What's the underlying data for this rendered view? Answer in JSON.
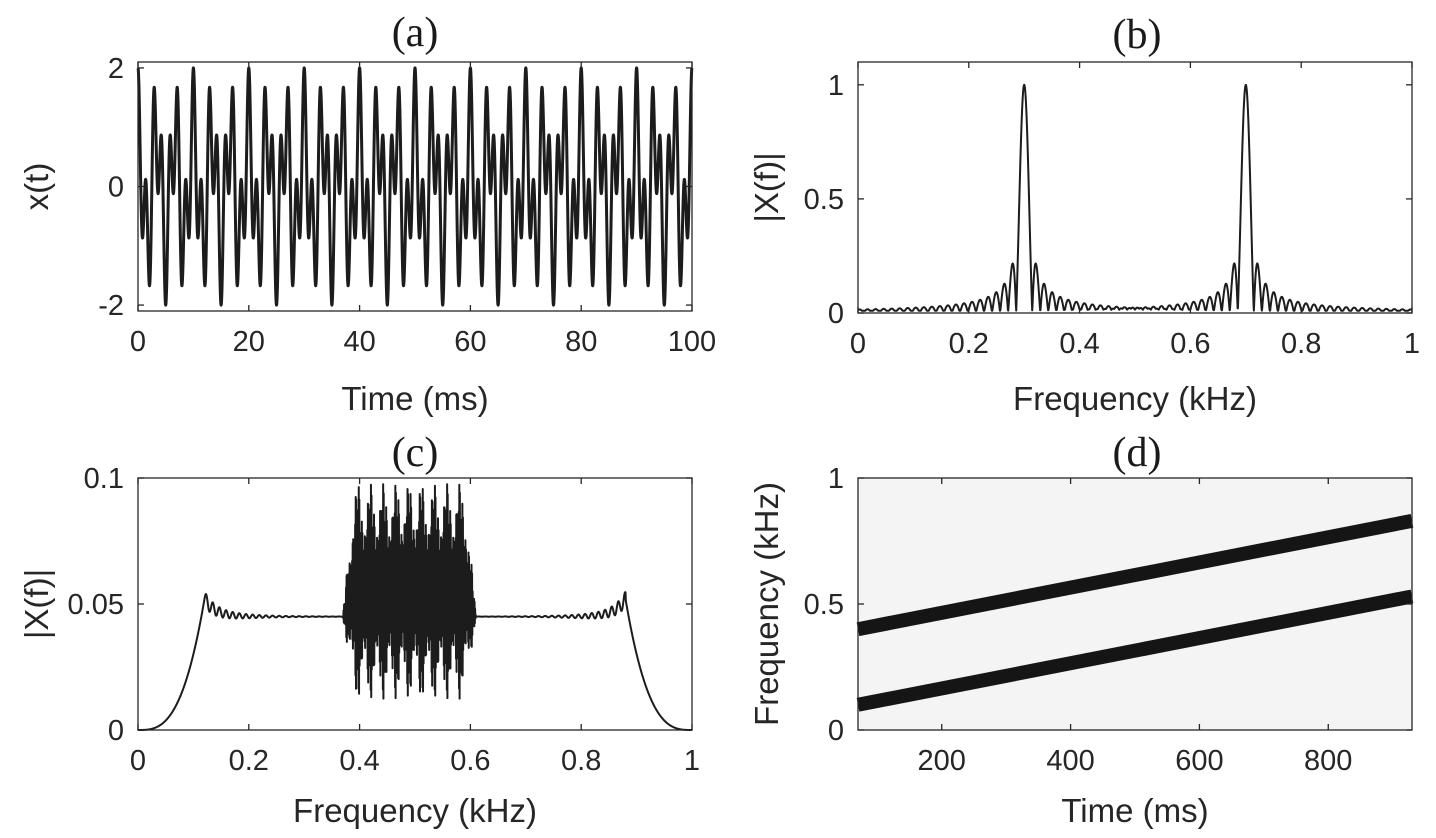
{
  "chart_data": [
    {
      "id": "a",
      "type": "line",
      "title": "(a)",
      "xlabel": "Time (ms)",
      "ylabel": "x(t)",
      "xlim": [
        0,
        100
      ],
      "ylim": [
        -2.1,
        2.1
      ],
      "xticks": [
        "0",
        "20",
        "40",
        "60",
        "80",
        "100"
      ],
      "yticks": [
        "-2",
        "0",
        "2"
      ],
      "series": [
        {
          "components_hz": [
            300,
            700
          ],
          "amplitude_each": 1,
          "x_unit": "ms"
        }
      ]
    },
    {
      "id": "b",
      "type": "line",
      "title": "(b)",
      "xlabel": "Frequency (kHz)",
      "ylabel": "|X(f)|",
      "xlim": [
        0,
        1
      ],
      "ylim": [
        0,
        1.1
      ],
      "xticks": [
        "0",
        "0.2",
        "0.4",
        "0.6",
        "0.8",
        "1"
      ],
      "yticks": [
        "0",
        "0.5",
        "1"
      ],
      "series": [
        {
          "peaks": [
            {
              "x": 0.3,
              "y": 1.0
            },
            {
              "x": 0.7,
              "y": 1.0
            }
          ],
          "sidelobe_level": 0.21,
          "baseline": 0.01
        }
      ]
    },
    {
      "id": "c",
      "type": "line",
      "title": "(c)",
      "xlabel": "Frequency (kHz)",
      "ylabel": "|X(f)|",
      "xlim": [
        0,
        1
      ],
      "ylim": [
        0,
        0.1
      ],
      "xticks": [
        "0",
        "0.2",
        "0.4",
        "0.6",
        "0.8",
        "1"
      ],
      "yticks": [
        "0",
        "0.05",
        "0.1"
      ],
      "series": [
        {
          "plateau_level": 0.045,
          "band_edges": [
            0.12,
            0.88
          ],
          "edge_peak": 0.052,
          "dense_region": [
            0.37,
            0.61
          ],
          "dense_range": [
            0.012,
            0.098
          ]
        }
      ]
    },
    {
      "id": "d",
      "type": "heatmap",
      "title": "(d)",
      "xlabel": "Time (ms)",
      "ylabel": "Frequency (kHz)",
      "xlim": [
        70,
        930
      ],
      "ylim": [
        0,
        1
      ],
      "xticks": [
        "200",
        "400",
        "600",
        "800"
      ],
      "yticks": [
        "0",
        "0.5",
        "1"
      ],
      "series": [
        {
          "name": "",
          "x": [
            70,
            930
          ],
          "y": [
            0.4,
            0.83
          ]
        },
        {
          "name": "",
          "x": [
            70,
            930
          ],
          "y": [
            0.1,
            0.53
          ]
        }
      ]
    }
  ]
}
